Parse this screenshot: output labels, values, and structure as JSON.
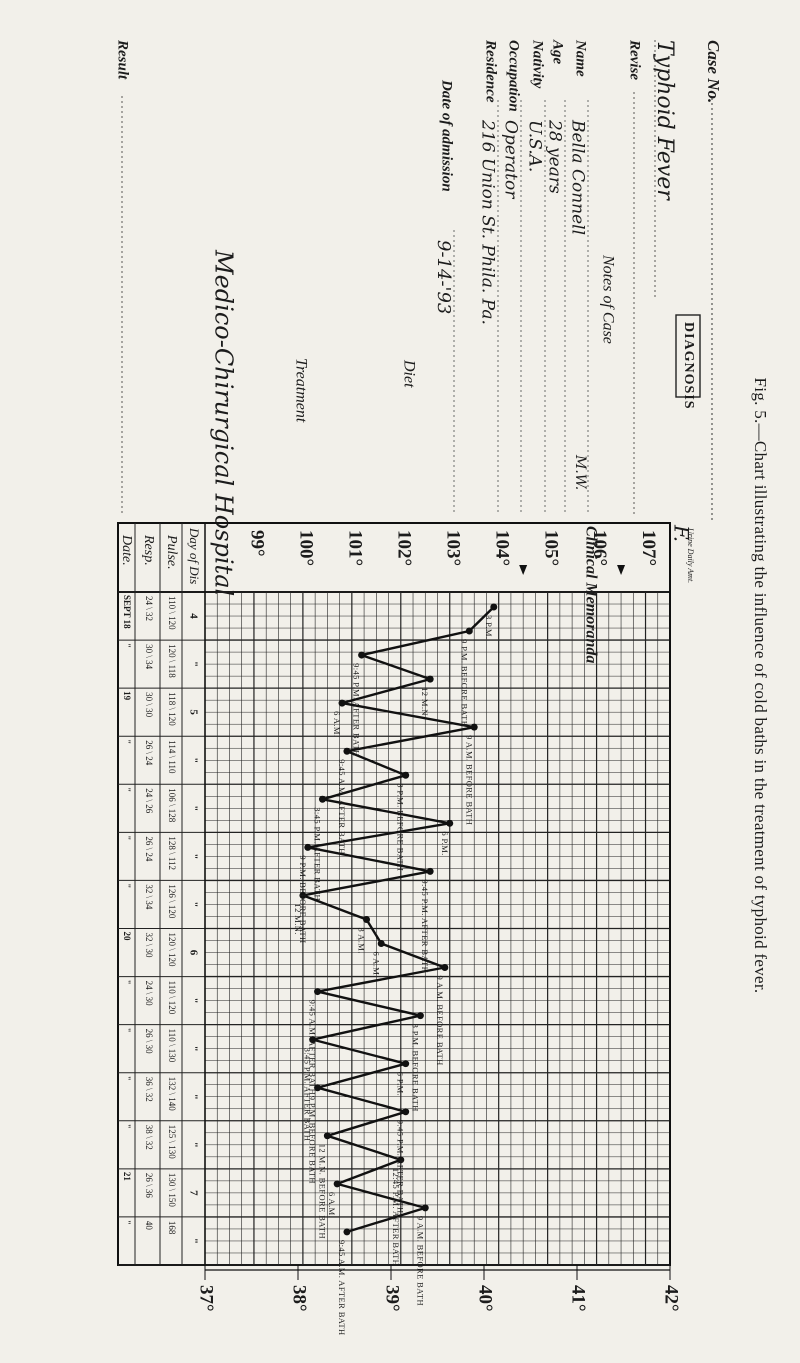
{
  "header": {
    "case_no_label": "Case No.",
    "diagnosis_label": "DIAGNOSIS",
    "diagnosis_value": "Typhoid Fever",
    "revise_label": "Revise",
    "notes_label": "Notes of Case",
    "name_label": "Name",
    "name_value": "Bella Connell",
    "name_suffix": "M.W.",
    "sex_value": "F.",
    "age_label": "Age",
    "age_value": "28 years",
    "nativity_label": "Nativity",
    "nativity_value": "U.S.A.",
    "occupation_label": "Occupation",
    "occupation_value": "Operator",
    "residence_label": "Residence",
    "residence_value": "216 Union St. Phila. Pa.",
    "admission_label": "Date of admission",
    "admission_value": "9-14-'93",
    "diet_label": "Diet",
    "treatment_label": "Treatment",
    "treatment_value": "Medico-Chirurgical Hospital",
    "result_label": "Result",
    "clinical_label": "Clinical Memoranda",
    "urine_label": "Urine Daily Amt.",
    "dayofdis_label": "Day of Dis",
    "pulse_label": "Pulse.",
    "resp_label": "Resp.",
    "date_label": "Date."
  },
  "scales": {
    "fahrenheit": [
      "99°",
      "100°",
      "101°",
      "102°",
      "103°",
      "104°",
      "105°",
      "106°",
      "107°"
    ],
    "celsius": [
      "37°",
      "38°",
      "39°",
      "40°",
      "41°",
      "42°"
    ]
  },
  "columns": [
    {
      "date": "SEPT 18",
      "day": "4",
      "pulse": "110",
      "pulse2": "120",
      "resp": "24",
      "resp2": "32"
    },
    {
      "date": "\"",
      "day": "\"",
      "pulse": "120",
      "pulse2": "118",
      "resp": "30",
      "resp2": "34"
    },
    {
      "date": "19",
      "day": "5",
      "pulse": "118",
      "pulse2": "120",
      "resp": "30",
      "resp2": "30"
    },
    {
      "date": "\"",
      "day": "\"",
      "pulse": "114",
      "pulse2": "110",
      "resp": "26",
      "resp2": "24"
    },
    {
      "date": "\"",
      "day": "\"",
      "pulse": "106",
      "pulse2": "128",
      "resp": "24",
      "resp2": "26"
    },
    {
      "date": "\"",
      "day": "\"",
      "pulse": "128",
      "pulse2": "112",
      "resp": "26",
      "resp2": "24"
    },
    {
      "date": "\"",
      "day": "\"",
      "pulse": "126",
      "pulse2": "120",
      "resp": "32",
      "resp2": "34"
    },
    {
      "date": "20",
      "day": "6",
      "pulse": "120",
      "pulse2": "120",
      "resp": "32",
      "resp2": "30"
    },
    {
      "date": "\"",
      "day": "\"",
      "pulse": "110",
      "pulse2": "120",
      "resp": "24",
      "resp2": "30"
    },
    {
      "date": "\"",
      "day": "\"",
      "pulse": "110",
      "pulse2": "130",
      "resp": "26",
      "resp2": "30"
    },
    {
      "date": "\"",
      "day": "\"",
      "pulse": "132",
      "pulse2": "140",
      "resp": "36",
      "resp2": "32"
    },
    {
      "date": "\"",
      "day": "\"",
      "pulse": "125",
      "pulse2": "130",
      "resp": "38",
      "resp2": "32"
    },
    {
      "date": "21",
      "day": "7",
      "pulse": "130",
      "pulse2": "150",
      "resp": "26",
      "resp2": "36"
    },
    {
      "date": "\"",
      "day": "\"",
      "pulse": "168",
      "pulse2": "",
      "resp": "40",
      "resp2": ""
    }
  ],
  "annotations": [
    "3 P.M.",
    "9 P.M. BEFORE BATH",
    "9:45 P.M. AFTER BATH",
    "12 M.N.",
    "6 A.M.",
    "9 A.M. BEFORE BATH",
    "9:45 A.M. AFTER BATH",
    "3 P.M. BEFORE BATH",
    "3:45 P.M. AFTER BATH",
    "6 P.M.",
    "9 P.M. BEFORE BATH",
    "9:45 P.M. AFTER BATH",
    "12 M.N.",
    "3 A.M.",
    "6 A.M.",
    "9 A.M. BEFORE BATH",
    "9:45 A.M. AFTER BATH",
    "3 P.M. BEFORE BATH",
    "3:45 P.M. AFTER BATH",
    "6 P.M.",
    "9 P.M. BEFORE BATH",
    "9:45 P.M. AFTER BATH",
    "12 M.N. BEFORE BATH",
    "12:45 P.M. AFTER BATH",
    "6 A.M.",
    "9 A.M. BEFORE BATH",
    "9:45 A.M. AFTER BATH"
  ],
  "chart_data": {
    "type": "line",
    "temperatures_f": [
      103.9,
      103.4,
      101.2,
      102.6,
      100.8,
      103.5,
      100.9,
      102.1,
      100.4,
      103.0,
      100.1,
      102.6,
      100.0,
      101.3,
      101.6,
      102.9,
      100.3,
      102.4,
      100.2,
      102.1,
      100.3,
      102.1,
      100.5,
      102.0,
      100.7,
      102.5,
      100.9
    ],
    "ylim_f": [
      98,
      107.5
    ],
    "ylim_c": [
      37,
      42
    ]
  },
  "caption": "Fig. 5.—Chart illustrating the influence of cold baths in the treatment of typhoid fever."
}
